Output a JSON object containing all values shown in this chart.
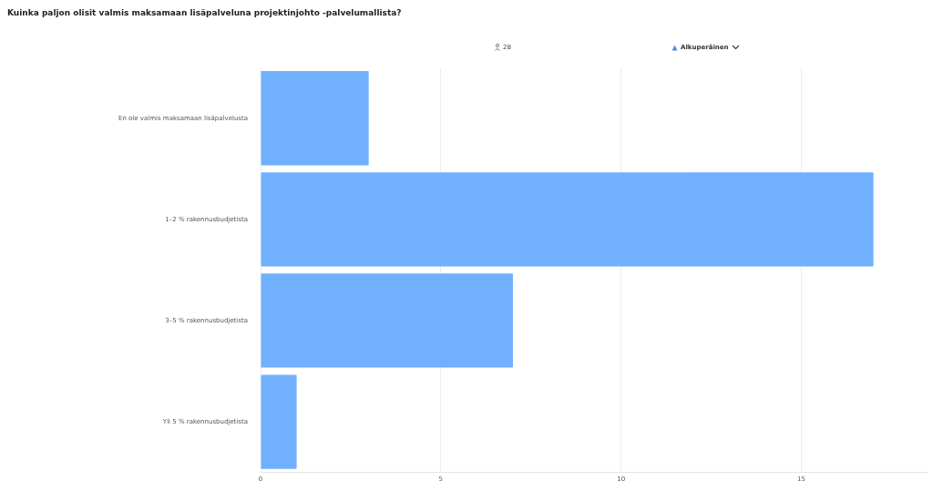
{
  "chart_data": {
    "type": "bar",
    "orientation": "horizontal",
    "title": "Kuinka paljon olisit valmis maksamaan lisäpalveluna projektinjohto -palvelumallista?",
    "annotations": [
      "28",
      "Alkuperäinen"
    ],
    "categories": [
      "En ole valmis maksamaan lisäpalvelusta",
      "1–2 % rakennusbudjetista",
      "3–5 % rakennusbudjetista",
      "Yli 5 % rakennusbudjetista"
    ],
    "values": [
      3,
      17,
      7,
      1
    ],
    "color": "#70b0ff",
    "xlim": [
      0,
      18.5
    ],
    "xticks": [
      0,
      5,
      10,
      15
    ],
    "grid": "x",
    "legend": false
  }
}
